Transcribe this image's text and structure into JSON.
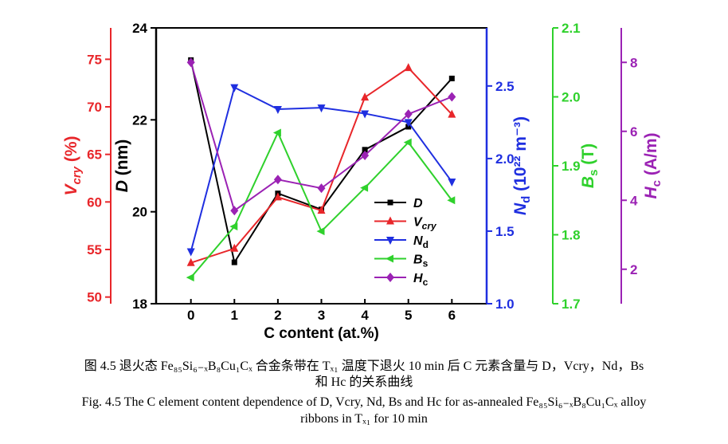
{
  "chart_data": {
    "type": "line",
    "xlabel": "C content (at.%)",
    "x": [
      0,
      1,
      2,
      3,
      4,
      5,
      6
    ],
    "xlim": [
      -0.8,
      6.8
    ],
    "x_ticks": [
      "0",
      "1",
      "2",
      "3",
      "4",
      "5",
      "6"
    ],
    "axes": [
      {
        "id": "D",
        "label_main": "D",
        "label_sub": "",
        "label_unit": " (nm)",
        "side": "left-inner",
        "color": "#000000",
        "ylim": [
          18,
          24
        ],
        "ticks": [
          "18",
          "20",
          "22",
          "24"
        ]
      },
      {
        "id": "Vcry",
        "label_main": "V",
        "label_sub": "cry",
        "label_unit": " (%)",
        "side": "left-outer",
        "color": "#e8262a",
        "ylim": [
          49.3,
          78.3
        ],
        "ticks": [
          "50",
          "55",
          "60",
          "65",
          "70",
          "75"
        ]
      },
      {
        "id": "Nd",
        "label_main": "N",
        "label_sub": "d",
        "label_unit": " (10²² m⁻³)",
        "side": "right-1",
        "color": "#1f2fe0",
        "ylim": [
          1.0,
          2.9
        ],
        "ticks": [
          "1.0",
          "1.5",
          "2.0",
          "2.5"
        ]
      },
      {
        "id": "Bs",
        "label_main": "B",
        "label_sub": "s",
        "label_unit": " (T)",
        "side": "right-2",
        "color": "#2fd12c",
        "ylim": [
          1.7,
          2.1
        ],
        "ticks": [
          "1.7",
          "1.8",
          "1.9",
          "2.0",
          "2.1"
        ]
      },
      {
        "id": "Hc",
        "label_main": "H",
        "label_sub": "c",
        "label_unit": " (A/m)",
        "side": "right-3",
        "color": "#9b22b4",
        "ylim": [
          1.0,
          9.0
        ],
        "ticks": [
          "2",
          "4",
          "6",
          "8"
        ]
      }
    ],
    "series": [
      {
        "name": "D",
        "axis": "D",
        "marker": "square",
        "color": "#000000",
        "values": [
          23.3,
          18.9,
          20.4,
          20.05,
          21.35,
          21.85,
          22.9
        ]
      },
      {
        "name": "Vcry",
        "axis": "Vcry",
        "marker": "triangle-up",
        "color": "#e8262a",
        "values": [
          53.6,
          55.1,
          60.5,
          59.1,
          71.0,
          74.1,
          69.2
        ]
      },
      {
        "name": "Nd",
        "axis": "Nd",
        "marker": "triangle-down",
        "color": "#1f2fe0",
        "values": [
          1.36,
          2.49,
          2.34,
          2.35,
          2.31,
          2.25,
          1.84
        ]
      },
      {
        "name": "Bs",
        "axis": "Bs",
        "marker": "triangle-left",
        "color": "#2fd12c",
        "values": [
          1.738,
          1.812,
          1.948,
          1.805,
          1.868,
          1.934,
          1.85
        ]
      },
      {
        "name": "Hc",
        "axis": "Hc",
        "marker": "diamond",
        "color": "#9b22b4",
        "values": [
          8.0,
          3.7,
          4.6,
          4.35,
          5.3,
          6.5,
          7.0
        ]
      }
    ],
    "legend": {
      "placement": "bottom-right",
      "entries": [
        {
          "main": "D",
          "sub": ""
        },
        {
          "main": "V",
          "sub": "cry"
        },
        {
          "main": "N",
          "sub": "d"
        },
        {
          "main": "B",
          "sub": "s"
        },
        {
          "main": "H",
          "sub": "c"
        }
      ]
    },
    "grid": false
  },
  "caption": {
    "cn_line1": "图 4.5  退火态 Fe₈₅Si₆₋ₓB₈Cu₁Cₓ 合金条带在 Tₓ₁ 温度下退火 10 min 后 C 元素含量与 D，Vcry，Nd，Bs",
    "cn_line2": "和 Hc 的关系曲线",
    "en_line1": "Fig. 4.5 The C element content dependence of D, Vcry, Nd, Bs and Hc for as-annealed Fe₈₅Si₆₋ₓB₈Cu₁Cₓ alloy",
    "en_line2": "ribbons in Tₓ₁ for 10 min"
  }
}
